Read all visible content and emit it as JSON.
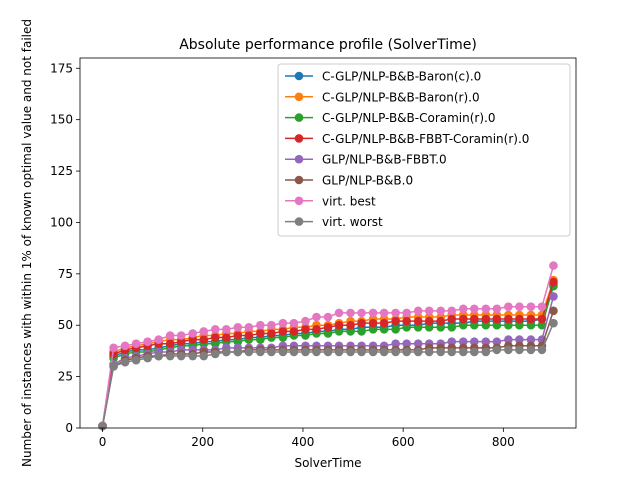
{
  "chart_data": {
    "type": "line",
    "title": "Absolute performance profile (SolverTime)",
    "xlabel": "SolverTime",
    "ylabel": "Number of instances with within 1% of known optimal value and not failed",
    "xlim": [
      -45,
      945
    ],
    "ylim": [
      0,
      180
    ],
    "xticks": [
      0,
      200,
      400,
      600,
      800
    ],
    "yticks": [
      0,
      25,
      50,
      75,
      100,
      125,
      150,
      175
    ],
    "legend_position": "upper-right",
    "grid": false,
    "x": [
      0,
      22,
      45,
      67,
      90,
      112,
      135,
      157,
      180,
      202,
      225,
      247,
      270,
      292,
      315,
      337,
      360,
      382,
      405,
      427,
      450,
      472,
      495,
      517,
      540,
      562,
      585,
      607,
      630,
      652,
      675,
      697,
      720,
      742,
      765,
      787,
      810,
      832,
      855,
      877,
      900
    ],
    "series": [
      {
        "name": "C-GLP/NLP-B&B-Baron(c).0",
        "color": "#1f77b4",
        "values": [
          1,
          35,
          37,
          38,
          38,
          39,
          40,
          41,
          41,
          42,
          42,
          43,
          43,
          44,
          44,
          45,
          45,
          46,
          46,
          47,
          47,
          48,
          48,
          49,
          49,
          49,
          50,
          50,
          50,
          51,
          51,
          51,
          51,
          52,
          52,
          52,
          52,
          52,
          52,
          53,
          70
        ]
      },
      {
        "name": "C-GLP/NLP-B&B-Baron(r).0",
        "color": "#ff7f0e",
        "values": [
          1,
          37,
          39,
          40,
          41,
          42,
          43,
          43,
          44,
          45,
          45,
          46,
          46,
          47,
          47,
          48,
          48,
          49,
          49,
          50,
          50,
          51,
          52,
          52,
          53,
          53,
          53,
          54,
          54,
          54,
          54,
          55,
          55,
          55,
          55,
          55,
          55,
          55,
          55,
          55,
          72
        ]
      },
      {
        "name": "C-GLP/NLP-B&B-Coramin(r).0",
        "color": "#2ca02c",
        "values": [
          1,
          34,
          36,
          37,
          37,
          38,
          39,
          40,
          40,
          41,
          41,
          42,
          42,
          43,
          43,
          44,
          44,
          45,
          45,
          46,
          46,
          47,
          47,
          47,
          48,
          48,
          48,
          49,
          49,
          49,
          49,
          49,
          50,
          50,
          50,
          50,
          50,
          50,
          50,
          50,
          69
        ]
      },
      {
        "name": "C-GLP/NLP-B&B-FBBT-Coramin(r).0",
        "color": "#d62728",
        "values": [
          1,
          36,
          38,
          39,
          40,
          41,
          41,
          42,
          43,
          43,
          44,
          44,
          45,
          45,
          46,
          46,
          47,
          47,
          48,
          48,
          49,
          50,
          50,
          51,
          51,
          51,
          52,
          52,
          52,
          52,
          52,
          53,
          53,
          53,
          53,
          53,
          53,
          53,
          53,
          53,
          71
        ]
      },
      {
        "name": "GLP/NLP-B&B-FBBT.0",
        "color": "#9467bd",
        "values": [
          1,
          31,
          34,
          35,
          36,
          37,
          37,
          38,
          38,
          38,
          38,
          39,
          39,
          39,
          39,
          39,
          40,
          40,
          40,
          40,
          40,
          40,
          40,
          40,
          40,
          40,
          41,
          41,
          41,
          41,
          41,
          42,
          42,
          42,
          42,
          42,
          43,
          43,
          43,
          43,
          64
        ]
      },
      {
        "name": "GLP/NLP-B&B.0",
        "color": "#8c564b",
        "values": [
          1,
          30,
          33,
          34,
          35,
          35,
          36,
          36,
          36,
          37,
          37,
          37,
          37,
          38,
          38,
          38,
          38,
          38,
          38,
          38,
          38,
          38,
          38,
          38,
          38,
          38,
          38,
          38,
          38,
          39,
          39,
          39,
          39,
          39,
          39,
          39,
          40,
          40,
          40,
          40,
          57
        ]
      },
      {
        "name": "virt. best",
        "color": "#e377c2",
        "values": [
          1,
          39,
          40,
          41,
          42,
          43,
          45,
          45,
          46,
          47,
          48,
          48,
          49,
          49,
          50,
          50,
          51,
          51,
          52,
          54,
          54,
          56,
          56,
          56,
          56,
          56,
          56,
          56,
          57,
          57,
          57,
          57,
          58,
          58,
          58,
          58,
          59,
          59,
          59,
          59,
          79
        ]
      },
      {
        "name": "virt. worst",
        "color": "#7f7f7f",
        "values": [
          1,
          30,
          32,
          33,
          34,
          35,
          35,
          35,
          35,
          35,
          36,
          37,
          37,
          37,
          37,
          37,
          37,
          37,
          37,
          37,
          37,
          37,
          37,
          37,
          37,
          37,
          37,
          37,
          37,
          37,
          37,
          37,
          37,
          37,
          37,
          38,
          38,
          38,
          38,
          38,
          51
        ]
      }
    ]
  }
}
